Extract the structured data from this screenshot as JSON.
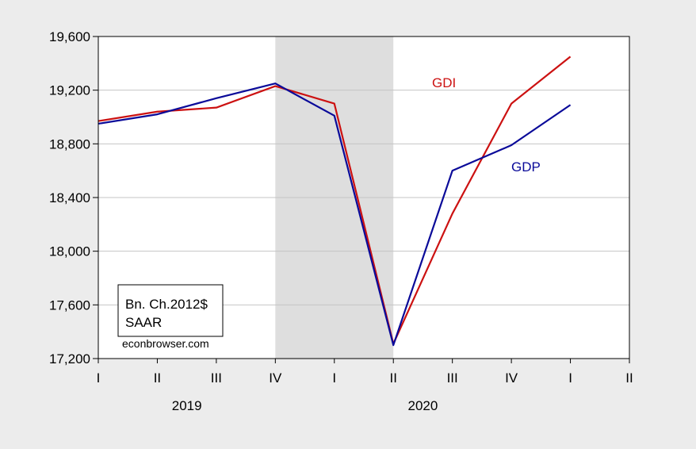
{
  "chart_data": {
    "type": "line",
    "title": "",
    "xlabel": "",
    "ylabel": "",
    "x_quarter_labels": [
      "I",
      "II",
      "III",
      "IV",
      "I",
      "II",
      "III",
      "IV",
      "I",
      "II"
    ],
    "x_year_labels": [
      {
        "year": "2019"
      },
      {
        "year": "2020"
      }
    ],
    "ylim": [
      17200,
      19600
    ],
    "y_ticks": [
      17200,
      17600,
      18000,
      18400,
      18800,
      19200,
      19600
    ],
    "y_tick_labels": [
      "17,200",
      "17,600",
      "18,000",
      "18,400",
      "18,800",
      "19,200",
      "19,600"
    ],
    "grid": "horizontal",
    "recession_shading": {
      "start": "2019Q4",
      "end": "2020Q2"
    },
    "series": [
      {
        "name": "GDI",
        "color": "#cc1111",
        "values": [
          18970,
          19040,
          19070,
          19230,
          19100,
          17310,
          18280,
          19100,
          19450
        ]
      },
      {
        "name": "GDP",
        "color": "#0a0a99",
        "values": [
          18950,
          19020,
          19140,
          19250,
          19010,
          17300,
          18600,
          18790,
          19090
        ]
      }
    ],
    "annotation_box": {
      "lines": [
        "Bn. Ch.2012$",
        "SAAR"
      ]
    },
    "source_note": "econbrowser.com"
  }
}
